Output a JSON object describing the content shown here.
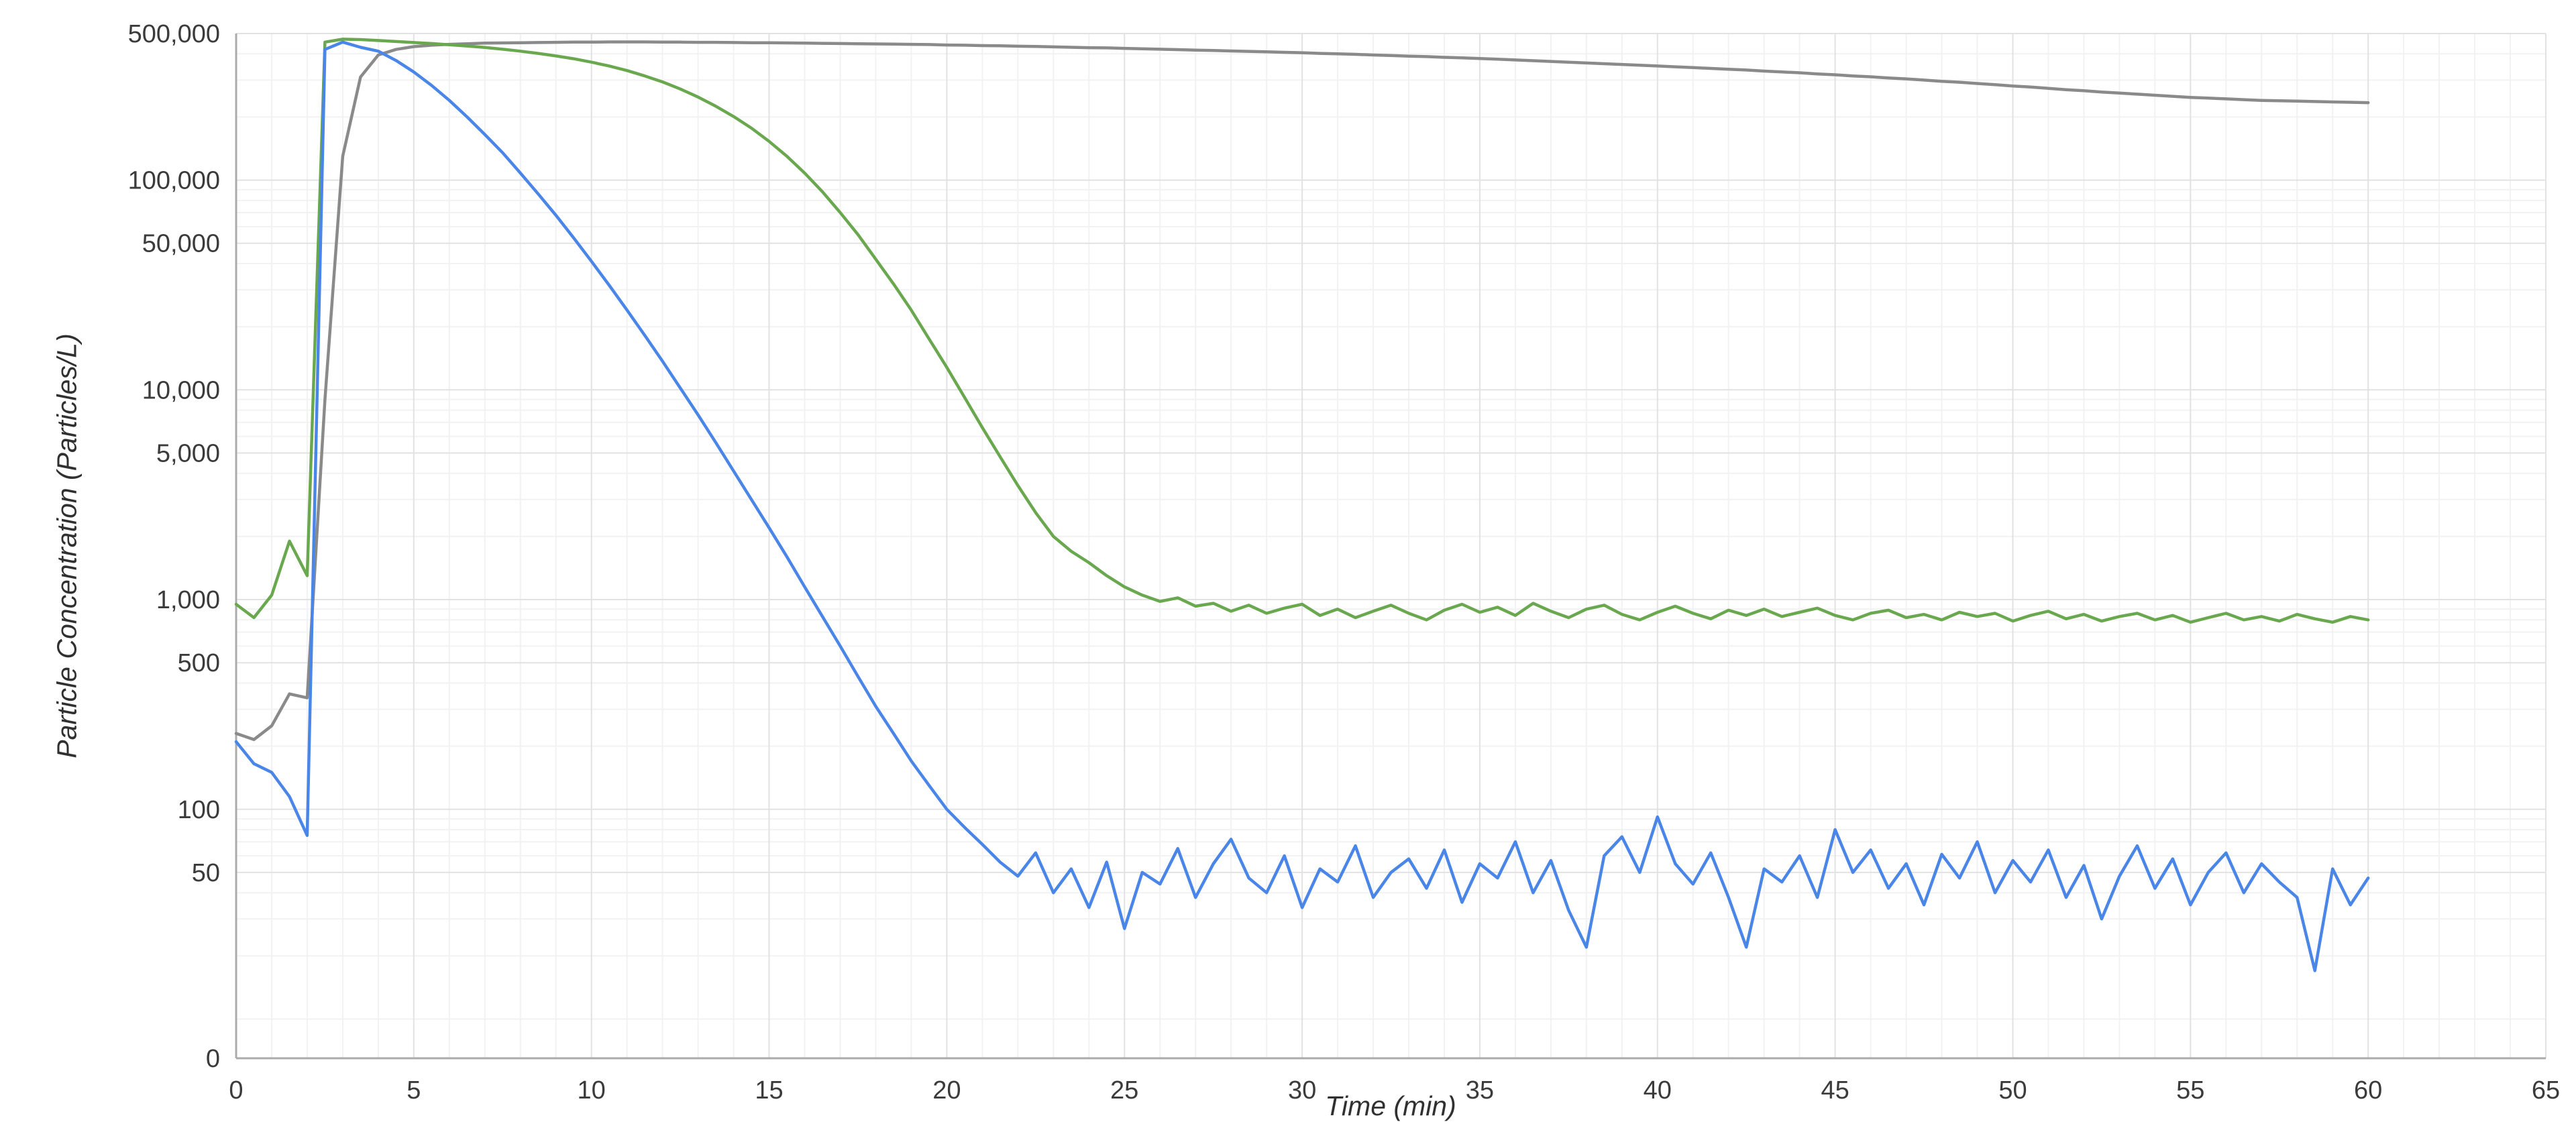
{
  "chart_data": {
    "type": "line",
    "title": "",
    "xlabel": "Time (min)",
    "ylabel": "Particle Concentration (Particles/L)",
    "x_range": [
      0,
      65
    ],
    "x_ticks": [
      0,
      5,
      10,
      15,
      20,
      25,
      30,
      35,
      40,
      45,
      50,
      55,
      60,
      65
    ],
    "x_minor_grid_step": 1,
    "y_axis": {
      "scale": "log",
      "top_value": 500000,
      "bottom_value": 6.5,
      "bottom_label": "0"
    },
    "y_ticks": [
      {
        "label": "500,000",
        "value": 500000
      },
      {
        "label": "100,000",
        "value": 100000
      },
      {
        "label": "50,000",
        "value": 50000
      },
      {
        "label": "10,000",
        "value": 10000
      },
      {
        "label": "5,000",
        "value": 5000
      },
      {
        "label": "1,000",
        "value": 1000
      },
      {
        "label": "500",
        "value": 500
      },
      {
        "label": "100",
        "value": 100
      },
      {
        "label": "50",
        "value": 50
      },
      {
        "label": "0",
        "value": null
      }
    ],
    "grid": {
      "minor_horizontal": true,
      "minor_vertical": true,
      "legend": "none"
    },
    "colors": {
      "grid_minor": "#f2f2f2",
      "grid_major": "#e2e2e2",
      "axis": "#ababab",
      "text": "#3b3b3b"
    },
    "x_start": 0,
    "x_step": 0.5,
    "points_per_series": 121,
    "series": [
      {
        "name": "series-gray",
        "color": "#8a8a8a",
        "y": [
          230,
          215,
          250,
          355,
          340,
          9000,
          130000,
          310000,
          395000,
          420000,
          433000,
          440000,
          444000,
          447000,
          450000,
          451000,
          452000,
          453000,
          454000,
          455000,
          455000,
          456000,
          456000,
          456000,
          455000,
          455000,
          454000,
          454000,
          453000,
          452000,
          452000,
          451000,
          450000,
          449000,
          448000,
          447000,
          446000,
          445000,
          444000,
          443000,
          441000,
          440000,
          438000,
          437000,
          435000,
          434000,
          432000,
          430000,
          428000,
          427000,
          425000,
          423000,
          421000,
          419000,
          417000,
          415000,
          413000,
          411000,
          409000,
          407000,
          405000,
          402000,
          400000,
          398000,
          395000,
          393000,
          390000,
          388000,
          385000,
          383000,
          380000,
          377000,
          374000,
          371000,
          368000,
          365000,
          362000,
          359000,
          356000,
          353000,
          350000,
          347000,
          344000,
          341000,
          338000,
          335000,
          331000,
          328000,
          325000,
          321000,
          318000,
          314000,
          311000,
          307000,
          304000,
          300000,
          296000,
          293000,
          289000,
          285000,
          281000,
          278000,
          274000,
          270000,
          267000,
          263000,
          260000,
          257000,
          254000,
          251000,
          248000,
          246000,
          244000,
          242000,
          240000,
          239000,
          238000,
          237000,
          236000,
          235000,
          234000
        ]
      },
      {
        "name": "series-green",
        "color": "#6aa84f",
        "y": [
          950,
          820,
          1050,
          1900,
          1300,
          455000,
          470000,
          468000,
          463000,
          458000,
          453000,
          448000,
          442000,
          436000,
          429000,
          421000,
          412000,
          402000,
          391000,
          379000,
          365000,
          350000,
          333000,
          314000,
          294000,
          272000,
          249000,
          225000,
          201000,
          177000,
          153000,
          130000,
          108000,
          88000,
          70000,
          55000,
          42000,
          32000,
          24000,
          17500,
          12800,
          9200,
          6600,
          4800,
          3500,
          2600,
          2000,
          1700,
          1500,
          1300,
          1150,
          1050,
          980,
          1020,
          930,
          960,
          880,
          940,
          860,
          910,
          950,
          840,
          900,
          820,
          880,
          940,
          860,
          800,
          890,
          950,
          870,
          920,
          840,
          960,
          880,
          820,
          900,
          940,
          850,
          800,
          870,
          930,
          860,
          810,
          890,
          840,
          900,
          830,
          870,
          910,
          840,
          800,
          860,
          890,
          820,
          850,
          800,
          870,
          830,
          860,
          790,
          840,
          880,
          810,
          850,
          790,
          830,
          860,
          800,
          840,
          780,
          820,
          860,
          800,
          830,
          790,
          850,
          810,
          780,
          830,
          800
        ]
      },
      {
        "name": "series-blue",
        "color": "#4a86e8",
        "y": [
          210,
          165,
          150,
          115,
          75,
          420000,
          455000,
          430000,
          412000,
          372000,
          328000,
          283000,
          240000,
          200000,
          165000,
          135000,
          108000,
          86000,
          68000,
          53000,
          41000,
          31500,
          24000,
          18200,
          13700,
          10200,
          7600,
          5600,
          4100,
          3000,
          2200,
          1600,
          1150,
          830,
          600,
          430,
          310,
          230,
          170,
          130,
          100,
          82,
          68,
          56,
          48,
          62,
          40,
          52,
          34,
          56,
          27,
          50,
          44,
          65,
          38,
          55,
          72,
          47,
          40,
          60,
          34,
          52,
          45,
          67,
          38,
          50,
          58,
          42,
          64,
          36,
          55,
          47,
          70,
          40,
          57,
          33,
          22,
          60,
          74,
          50,
          92,
          55,
          44,
          62,
          38,
          22,
          52,
          45,
          60,
          38,
          80,
          50,
          64,
          42,
          55,
          35,
          61,
          47,
          70,
          40,
          57,
          45,
          64,
          38,
          54,
          30,
          48,
          67,
          42,
          58,
          35,
          50,
          62,
          40,
          55,
          45,
          38,
          17,
          52,
          35,
          47
        ]
      }
    ]
  }
}
